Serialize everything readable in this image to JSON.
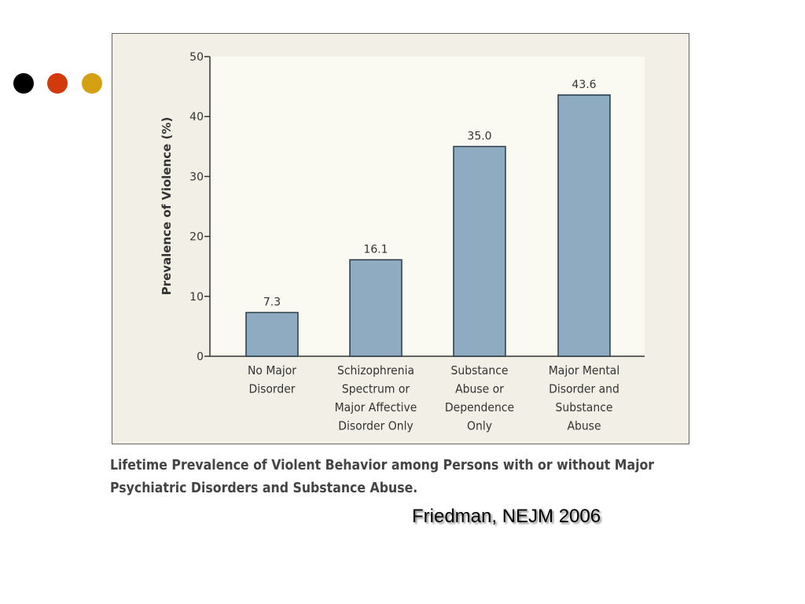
{
  "decor": {
    "dot_colors": [
      "#000000",
      "#d23a0c",
      "#d4a012"
    ]
  },
  "chart_data": {
    "type": "bar",
    "title": "",
    "xlabel": "",
    "ylabel": "Prevalence of Violence (%)",
    "ylim": [
      0,
      50
    ],
    "yticks": [
      0,
      10,
      20,
      30,
      40,
      50
    ],
    "categories": [
      [
        "No Major",
        "Disorder"
      ],
      [
        "Schizophrenia",
        "Spectrum or",
        "Major Affective",
        "Disorder Only"
      ],
      [
        "Substance",
        "Abuse or",
        "Dependence",
        "Only"
      ],
      [
        "Major Mental",
        "Disorder and",
        "Substance",
        "Abuse"
      ]
    ],
    "values": [
      7.3,
      16.1,
      35.0,
      43.6
    ],
    "value_labels": [
      "7.3",
      "16.1",
      "35.0",
      "43.6"
    ],
    "bar_color": "#8fabc1",
    "grid": false
  },
  "caption": "Lifetime Prevalence of Violent Behavior among Persons with or without Major Psychiatric Disorders and Substance Abuse.",
  "citation": "Friedman, NEJM 2006"
}
